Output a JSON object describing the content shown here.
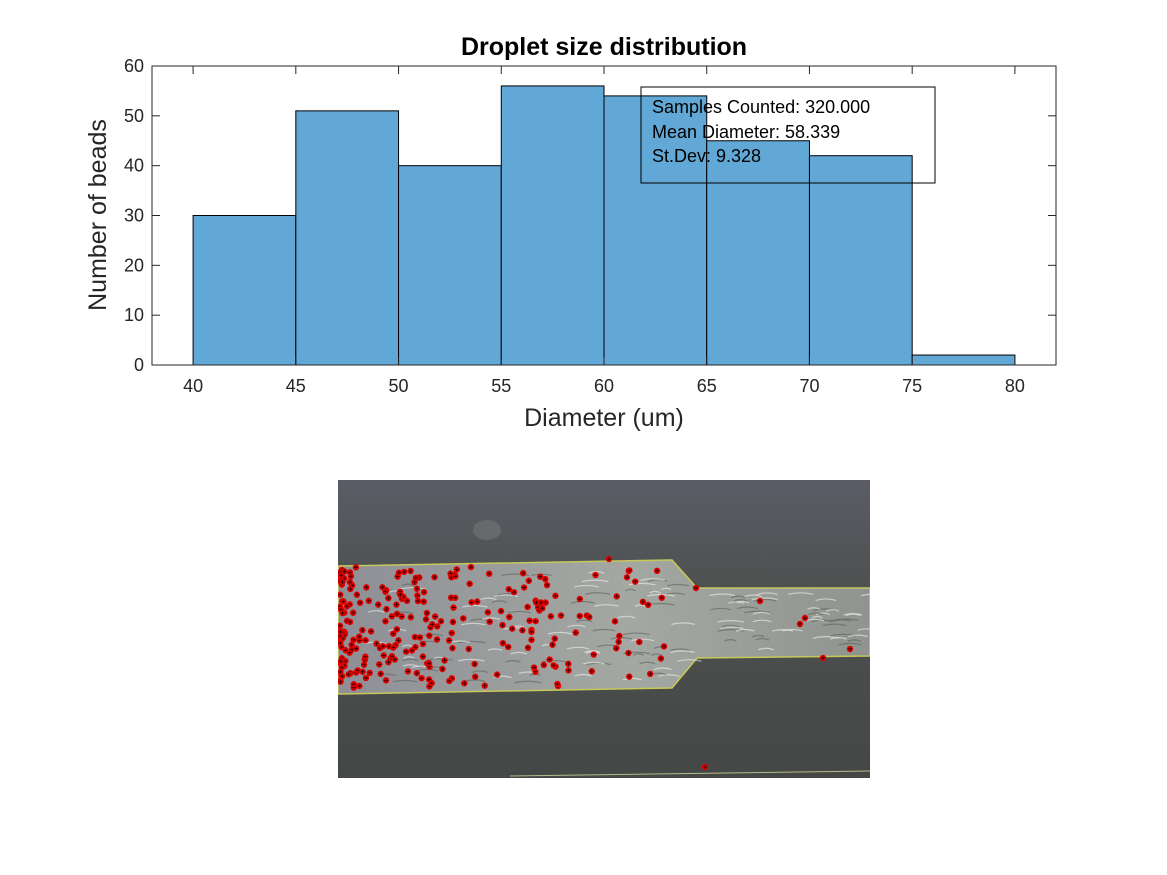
{
  "chart_data": {
    "type": "bar",
    "title": "Droplet size distribution",
    "xlabel": "Diameter (um)",
    "ylabel": "Number of beads",
    "xlim": [
      38,
      82
    ],
    "ylim": [
      0,
      60
    ],
    "xticks": [
      40,
      45,
      50,
      55,
      60,
      65,
      70,
      75,
      80
    ],
    "yticks": [
      0,
      10,
      20,
      30,
      40,
      50,
      60
    ],
    "bin_edges": [
      40,
      45,
      50,
      55,
      60,
      65,
      70,
      75,
      80
    ],
    "values": [
      30,
      51,
      40,
      56,
      54,
      45,
      42,
      2
    ],
    "bar_color": "#62a8d6",
    "edge_color": "#000000",
    "grid": false,
    "annotation": {
      "lines": [
        "Samples Counted: 320.000",
        "Mean Diameter: 58.339",
        "St.Dev: 9.328"
      ],
      "placement": "top-right"
    }
  },
  "microscope_image": {
    "marker_color": "#e00000",
    "background_color": "#4a4d4c",
    "channel_color": "#9a9e98"
  }
}
